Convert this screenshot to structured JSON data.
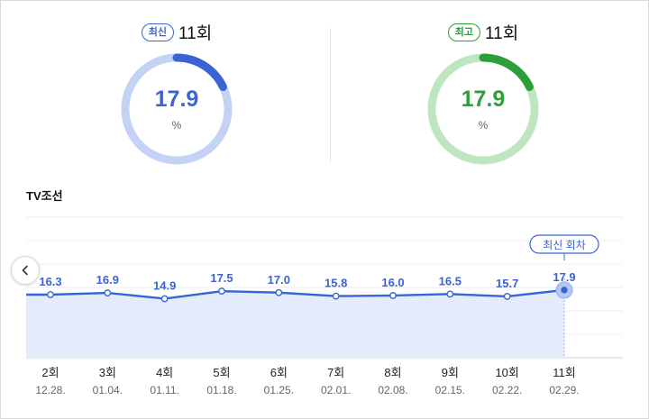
{
  "summary": {
    "latest": {
      "badge": "최신",
      "episode": "11회",
      "value": "17.9",
      "fraction": 0.179,
      "unit": "%"
    },
    "best": {
      "badge": "최고",
      "episode": "11회",
      "value": "17.9",
      "fraction": 0.179,
      "unit": "%"
    }
  },
  "channel": "TV조선",
  "colors": {
    "blue": "#3b63d4",
    "blue_light": "#c3d2f5",
    "green": "#2e9e3a",
    "green_light": "#bfe6c0",
    "line": "#3466d6",
    "area": "#e4ecfb"
  },
  "icons": {
    "prev": "chevron-left-icon"
  },
  "chart_data": {
    "type": "area",
    "series": [
      {
        "values": [
          16.3,
          16.9,
          14.9,
          17.5,
          17.0,
          15.8,
          16.0,
          16.5,
          15.7,
          17.9
        ]
      }
    ],
    "labels": [
      "16.3",
      "16.9",
      "14.9",
      "17.5",
      "17.0",
      "15.8",
      "16.0",
      "16.5",
      "15.7",
      "17.9"
    ],
    "categories": [
      "2회",
      "3회",
      "4회",
      "5회",
      "6회",
      "7회",
      "8회",
      "9회",
      "10회",
      "11회"
    ],
    "dates": [
      "12.28.",
      "01.04.",
      "01.11.",
      "01.18.",
      "01.25.",
      "02.01.",
      "02.08.",
      "02.15.",
      "02.22.",
      "02.29."
    ],
    "highlight_label": "최신 회차",
    "ylim": [
      10,
      20
    ],
    "grid": true
  }
}
